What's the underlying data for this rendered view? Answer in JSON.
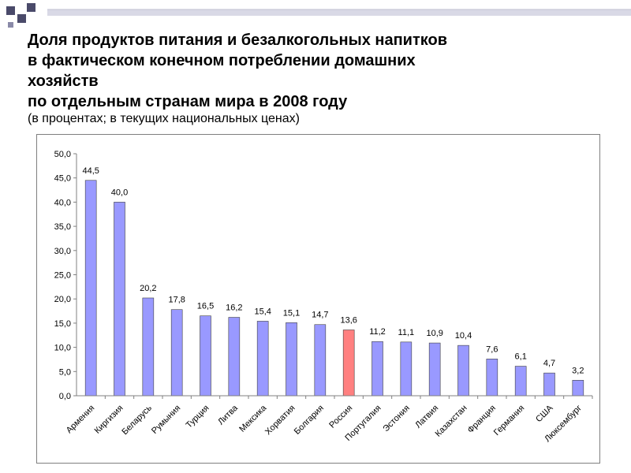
{
  "title_lines": [
    "Доля продуктов питания и безалкогольных напитков",
    "в фактическом конечном потреблении домашних",
    "хозяйств",
    "по отдельным странам мира в 2008 году"
  ],
  "subtitle": "(в процентах; в текущих национальных ценах)",
  "colors": {
    "bar_default": "#9999ff",
    "bar_highlight": "#ff8080",
    "deco_squares": "#4a4a6a"
  },
  "chart_data": {
    "type": "bar",
    "title": "",
    "xlabel": "",
    "ylabel": "",
    "ylim": [
      0,
      50
    ],
    "ytick_labels": [
      "0,0",
      "5,0",
      "10,0",
      "15,0",
      "20,0",
      "25,0",
      "30,0",
      "35,0",
      "40,0",
      "45,0",
      "50,0"
    ],
    "categories": [
      "Армения",
      "Киргизия",
      "Беларусь",
      "Румыния",
      "Турция",
      "Литва",
      "Мексика",
      "Хорватия",
      "Болгария",
      "Россия",
      "Португалия",
      "Эстония",
      "Латвия",
      "Казахстан",
      "Франция",
      "Германия",
      "США",
      "Люксембург"
    ],
    "values": [
      44.5,
      40.0,
      20.2,
      17.8,
      16.5,
      16.2,
      15.4,
      15.1,
      14.7,
      13.6,
      11.2,
      11.1,
      10.9,
      10.4,
      7.6,
      6.1,
      4.7,
      3.2
    ],
    "value_labels": [
      "44,5",
      "40,0",
      "20,2",
      "17,8",
      "16,5",
      "16,2",
      "15,4",
      "15,1",
      "14,7",
      "13,6",
      "11,2",
      "11,1",
      "10,9",
      "10,4",
      "7,6",
      "6,1",
      "4,7",
      "3,2"
    ],
    "highlight": "Россия",
    "grid": false,
    "legend": "none"
  }
}
